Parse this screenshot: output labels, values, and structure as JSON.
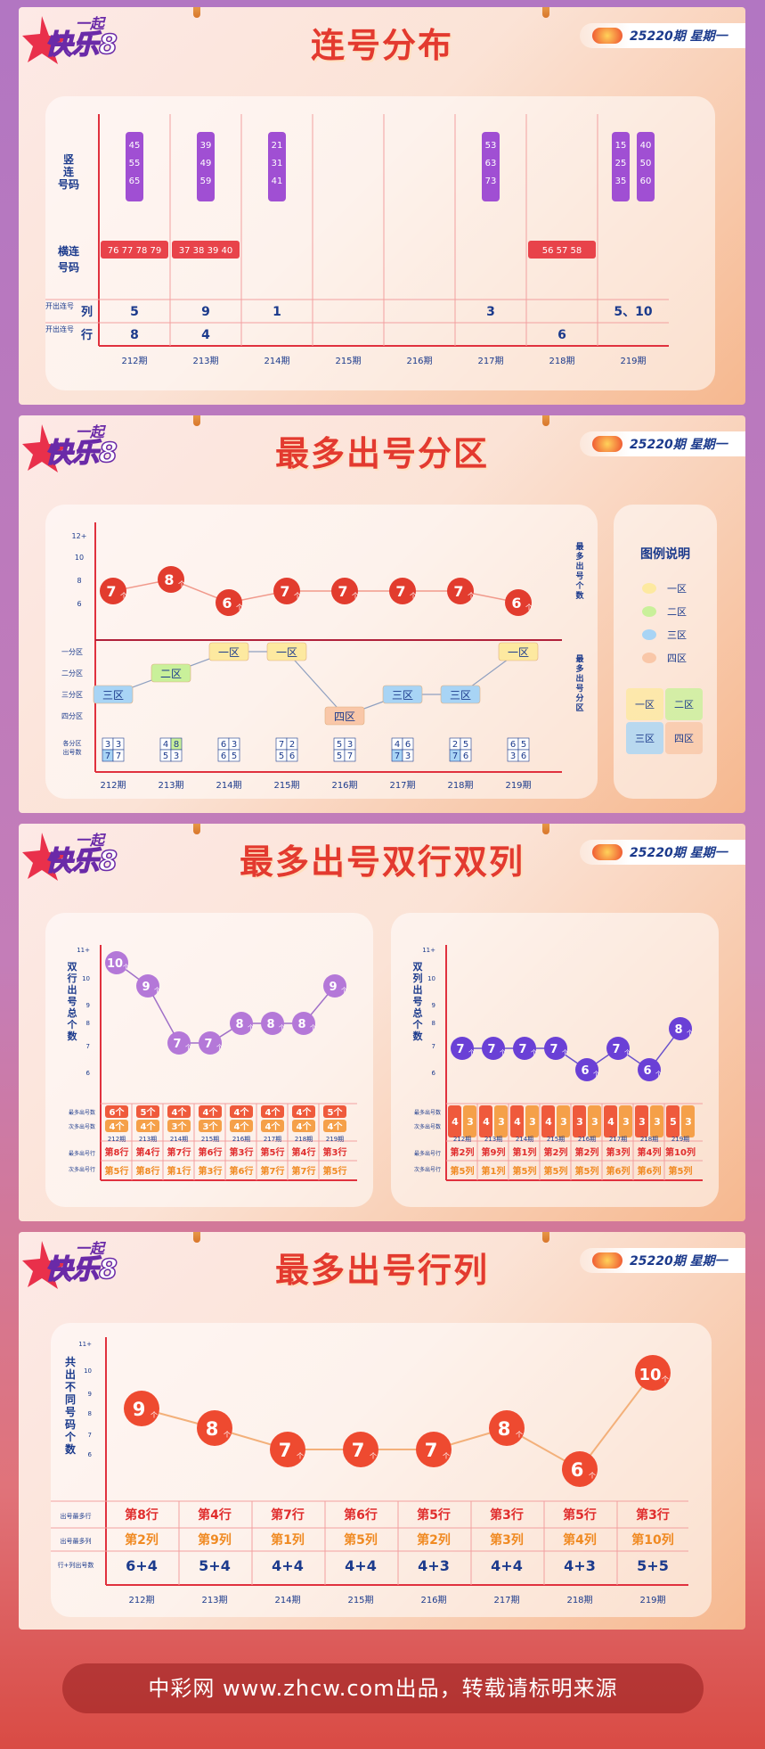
{
  "issue_label": "25220期 星期一",
  "footer": "中彩网 www.zhcw.com出品，转载请标明来源",
  "logo_text": "一起快乐8",
  "periods": [
    "212期",
    "213期",
    "214期",
    "215期",
    "216期",
    "217期",
    "218期",
    "219期"
  ],
  "consec": {
    "title": "连号分布",
    "row_labels": [
      "竖连号码",
      "横连号码",
      "开出连号列",
      "开出连号行"
    ],
    "row_labels_small": [
      "开出连号",
      "开出连号"
    ],
    "row_labels_big": [
      "列",
      "行"
    ],
    "vertical": [
      [
        [
          "45",
          "55",
          "65"
        ]
      ],
      [
        [
          "39",
          "49",
          "59"
        ]
      ],
      [
        [
          "21",
          "31",
          "41"
        ]
      ],
      [],
      [],
      [
        [
          "53",
          "63",
          "73"
        ]
      ],
      [],
      [
        [
          "15",
          "25",
          "35"
        ],
        [
          "40",
          "50",
          "60"
        ]
      ]
    ],
    "horizontal": [
      "76 77 78 79",
      "37 38 39 40",
      "",
      "",
      "",
      "",
      "56 57 58",
      ""
    ],
    "cols_open": [
      "5",
      "9",
      "1",
      "",
      "",
      "3",
      "",
      "5、10"
    ],
    "rows_open": [
      "8",
      "4",
      "",
      "",
      "",
      "",
      "6",
      ""
    ]
  },
  "zone": {
    "title": "最多出号分区",
    "y_ticks": [
      "12+",
      "10",
      "8",
      "6"
    ],
    "zone_ticks": [
      "一分区",
      "二分区",
      "三分区",
      "四分区"
    ],
    "count_label": "最多出号个数",
    "zone_label": "最多出号分区",
    "bottom_label": "各分区出号数",
    "legend_title": "图例说明",
    "legend": [
      "一区",
      "二区",
      "三区",
      "四区"
    ],
    "legend_colors": [
      "#fde9a0",
      "#c9f09a",
      "#a8d4f5",
      "#f9c7a8"
    ],
    "counts": [
      "7个",
      "8个",
      "6个",
      "7个",
      "7个",
      "7个",
      "7个",
      "6个"
    ],
    "zones": [
      "三区",
      "二区",
      "一区",
      "一区",
      "四区",
      "三区",
      "三区",
      "一区"
    ],
    "grids": [
      [
        "3",
        "3",
        "7",
        "7"
      ],
      [
        "4",
        "8",
        "5",
        "3"
      ],
      [
        "6",
        "3",
        "6",
        "5"
      ],
      [
        "7",
        "2",
        "5",
        "6"
      ],
      [
        "5",
        "3",
        "5",
        "7"
      ],
      [
        "4",
        "6",
        "7",
        "3"
      ],
      [
        "2",
        "5",
        "7",
        "6"
      ],
      [
        "6",
        "5",
        "3",
        "6"
      ]
    ]
  },
  "dual": {
    "title": "最多出号双行双列",
    "left": {
      "axis_label": "双行出号总个数",
      "y_ticks": [
        "11+",
        "10",
        "9",
        "8",
        "7",
        "6"
      ],
      "points": [
        "10个",
        "9个",
        "7个",
        "7个",
        "8个",
        "8个",
        "8个",
        "9个"
      ],
      "row_labels": [
        "最多出号数",
        "次多出号数",
        "最多出号行",
        "次多出号行"
      ],
      "max_counts": [
        "6个",
        "5个",
        "4个",
        "4个",
        "4个",
        "4个",
        "4个",
        "5个"
      ],
      "sec_counts": [
        "4个",
        "4个",
        "3个",
        "3个",
        "4个",
        "4个",
        "4个",
        "4个"
      ],
      "max_rows": [
        "第8行",
        "第4行",
        "第7行",
        "第6行",
        "第3行",
        "第5行",
        "第4行",
        "第3行"
      ],
      "sec_rows": [
        "第5行",
        "第8行",
        "第1行",
        "第3行",
        "第6行",
        "第7行",
        "第7行",
        "第5行"
      ]
    },
    "right": {
      "axis_label": "双列出号总个数",
      "y_ticks": [
        "11+",
        "10",
        "9",
        "8",
        "7",
        "6"
      ],
      "points": [
        "7个",
        "7个",
        "7个",
        "7个",
        "6个",
        "7个",
        "6个",
        "8个"
      ],
      "row_labels": [
        "最多出号数",
        "次多出号数",
        "最多出号行",
        "次多出号行"
      ],
      "max_counts": [
        "4",
        "4",
        "4",
        "4",
        "3",
        "4",
        "3",
        "5"
      ],
      "sec_counts": [
        "3",
        "3",
        "3",
        "3",
        "3",
        "3",
        "3",
        "3"
      ],
      "max_cols": [
        "第2列",
        "第9列",
        "第1列",
        "第2列",
        "第2列",
        "第3列",
        "第4列",
        "第10列"
      ],
      "sec_cols": [
        "第5列",
        "第1列",
        "第5列",
        "第5列",
        "第5列",
        "第6列",
        "第6列",
        "第5列"
      ]
    }
  },
  "rowcol": {
    "title": "最多出号行列",
    "axis_label": "共出不同号码个数",
    "y_ticks": [
      "11+",
      "10",
      "9",
      "8",
      "7",
      "6"
    ],
    "points": [
      "9个",
      "8个",
      "7个",
      "7个",
      "7个",
      "8个",
      "6个",
      "10个"
    ],
    "row_labels": [
      "出号最多行",
      "出号最多列",
      "行+列出号数"
    ],
    "max_rows": [
      "第8行",
      "第4行",
      "第7行",
      "第6行",
      "第5行",
      "第3行",
      "第5行",
      "第3行"
    ],
    "max_cols": [
      "第2列",
      "第9列",
      "第1列",
      "第5列",
      "第2列",
      "第3列",
      "第4列",
      "第10列"
    ],
    "sums": [
      "6+4",
      "5+4",
      "4+4",
      "4+4",
      "4+3",
      "4+4",
      "4+3",
      "5+5"
    ]
  },
  "chart_data": [
    {
      "type": "line",
      "title": "最多出号分区",
      "categories": [
        "212期",
        "213期",
        "214期",
        "215期",
        "216期",
        "217期",
        "218期",
        "219期"
      ],
      "series": [
        {
          "name": "最多出号个数",
          "values": [
            7,
            8,
            6,
            7,
            7,
            7,
            7,
            6
          ]
        }
      ],
      "ylim": [
        6,
        12
      ]
    },
    {
      "type": "line",
      "title": "最多出号双行双列",
      "categories": [
        "212期",
        "213期",
        "214期",
        "215期",
        "216期",
        "217期",
        "218期",
        "219期"
      ],
      "series": [
        {
          "name": "双行出号总个数",
          "values": [
            10,
            9,
            7,
            7,
            8,
            8,
            8,
            9
          ]
        },
        {
          "name": "双列出号总个数",
          "values": [
            7,
            7,
            7,
            7,
            6,
            7,
            6,
            8
          ]
        }
      ],
      "ylim": [
        6,
        11
      ]
    },
    {
      "type": "line",
      "title": "最多出号行列",
      "categories": [
        "212期",
        "213期",
        "214期",
        "215期",
        "216期",
        "217期",
        "218期",
        "219期"
      ],
      "series": [
        {
          "name": "共出不同号码个数",
          "values": [
            9,
            8,
            7,
            7,
            7,
            8,
            6,
            10
          ]
        }
      ],
      "ylim": [
        6,
        11
      ]
    }
  ]
}
